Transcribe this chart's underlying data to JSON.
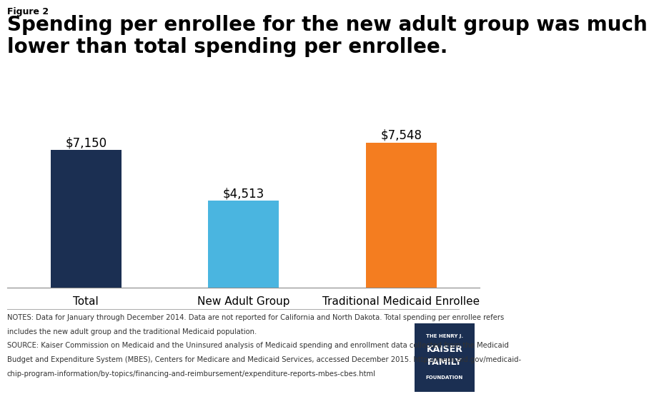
{
  "figure_label": "Figure 2",
  "title": "Spending per enrollee for the new adult group was much\nlower than total spending per enrollee.",
  "categories": [
    "Total",
    "New Adult Group",
    "Traditional Medicaid Enrollee"
  ],
  "values": [
    7150,
    4513,
    7548
  ],
  "bar_colors": [
    "#1b2f52",
    "#4ab5e0",
    "#f47d20"
  ],
  "bar_labels": [
    "$7,150",
    "$4,513",
    "$7,548"
  ],
  "ylim": [
    0,
    9000
  ],
  "background_color": "#ffffff",
  "notes_line1": "NOTES: Data for January through December 2014. Data are not reported for California and North Dakota. Total spending per enrollee refers",
  "notes_line2": "includes the new adult group and the traditional Medicaid population.",
  "notes_line3": "SOURCE: Kaiser Commission on Medicaid and the Uninsured analysis of Medicaid spending and enrollment data collected from the Medicaid",
  "notes_line4": "Budget and Expenditure System (MBES), Centers for Medicare and Medicaid Services, accessed December 2015. http://medicaid.gov/medicaid-",
  "notes_line5": "chip-program-information/by-topics/financing-and-reimbursement/expenditure-reports-mbes-cbes.html",
  "title_fontsize": 20,
  "figure_label_fontsize": 9,
  "bar_label_fontsize": 12,
  "category_fontsize": 11,
  "notes_fontsize": 7.2,
  "logo_texts": [
    "THE HENRY J.",
    "KAISER",
    "FAMILY",
    "FOUNDATION"
  ],
  "logo_fontsizes": [
    5,
    9,
    9,
    5
  ],
  "logo_color": "#1b2f52"
}
